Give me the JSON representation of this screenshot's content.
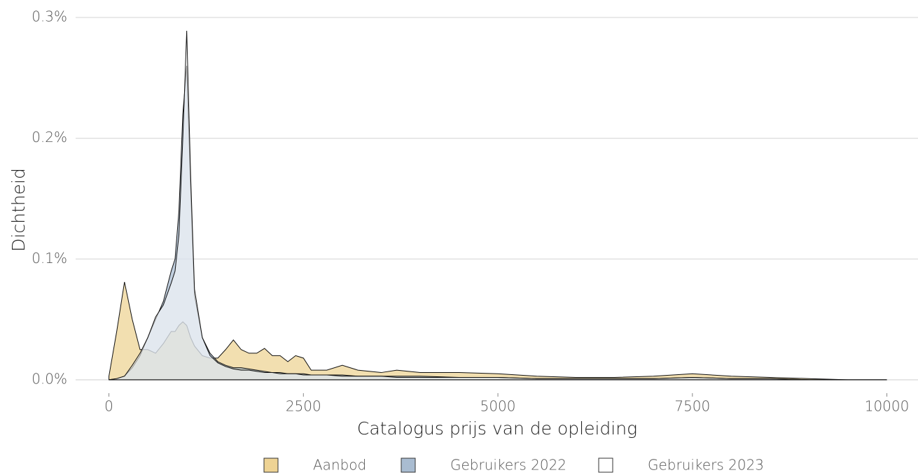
{
  "chart_data": {
    "type": "area",
    "x_label": "Catalogus prijs van de opleiding",
    "y_label": "Dichtheid",
    "x": [
      0,
      100,
      200,
      300,
      400,
      500,
      600,
      700,
      800,
      850,
      900,
      950,
      1000,
      1050,
      1100,
      1200,
      1300,
      1400,
      1500,
      1600,
      1700,
      1800,
      1900,
      2000,
      2100,
      2200,
      2300,
      2400,
      2500,
      2600,
      2800,
      3000,
      3200,
      3500,
      3700,
      4000,
      4500,
      5000,
      5500,
      6000,
      6500,
      7000,
      7500,
      8000,
      8500,
      9000,
      9500,
      10000
    ],
    "series": [
      {
        "name": "Aanbod",
        "color": "#e8c470",
        "values": [
          0.003,
          0.04,
          0.081,
          0.05,
          0.025,
          0.025,
          0.022,
          0.03,
          0.04,
          0.04,
          0.045,
          0.048,
          0.045,
          0.035,
          0.028,
          0.02,
          0.018,
          0.018,
          0.025,
          0.033,
          0.025,
          0.022,
          0.022,
          0.026,
          0.02,
          0.02,
          0.015,
          0.02,
          0.018,
          0.008,
          0.008,
          0.012,
          0.008,
          0.006,
          0.008,
          0.006,
          0.006,
          0.005,
          0.003,
          0.002,
          0.002,
          0.003,
          0.005,
          0.003,
          0.002,
          0.001,
          0,
          0
        ]
      },
      {
        "name": "Gebruikers 2022",
        "color": "#8ca5c2",
        "values": [
          0,
          0.001,
          0.003,
          0.01,
          0.02,
          0.035,
          0.05,
          0.065,
          0.09,
          0.1,
          0.14,
          0.22,
          0.26,
          0.16,
          0.07,
          0.035,
          0.022,
          0.015,
          0.012,
          0.01,
          0.01,
          0.009,
          0.008,
          0.007,
          0.006,
          0.006,
          0.005,
          0.005,
          0.005,
          0.004,
          0.004,
          0.004,
          0.003,
          0.003,
          0.003,
          0.003,
          0.002,
          0.002,
          0.001,
          0.001,
          0.001,
          0.001,
          0.002,
          0.001,
          0.001,
          0,
          0,
          0
        ]
      },
      {
        "name": "Gebruikers 2023",
        "color": "#ffffff",
        "values": [
          0,
          0.001,
          0.003,
          0.012,
          0.022,
          0.035,
          0.052,
          0.062,
          0.08,
          0.09,
          0.12,
          0.2,
          0.289,
          0.17,
          0.075,
          0.035,
          0.02,
          0.014,
          0.011,
          0.009,
          0.008,
          0.008,
          0.007,
          0.006,
          0.006,
          0.005,
          0.005,
          0.005,
          0.004,
          0.004,
          0.004,
          0.003,
          0.003,
          0.003,
          0.002,
          0.002,
          0.002,
          0.002,
          0.001,
          0.001,
          0.001,
          0.001,
          0.002,
          0.001,
          0.001,
          0,
          0,
          0
        ]
      }
    ],
    "xlim": [
      -500,
      10400
    ],
    "ylim": [
      -0.007,
      0.3
    ],
    "xticks": [
      0,
      2500,
      5000,
      7500,
      10000
    ],
    "yticks": [
      {
        "value": 0,
        "label": "0.0%"
      },
      {
        "value": 0.1,
        "label": "0.1%"
      },
      {
        "value": 0.2,
        "label": "0.2%"
      },
      {
        "value": 0.3,
        "label": "0.3%"
      }
    ],
    "grid": true,
    "legend": "bottom"
  }
}
